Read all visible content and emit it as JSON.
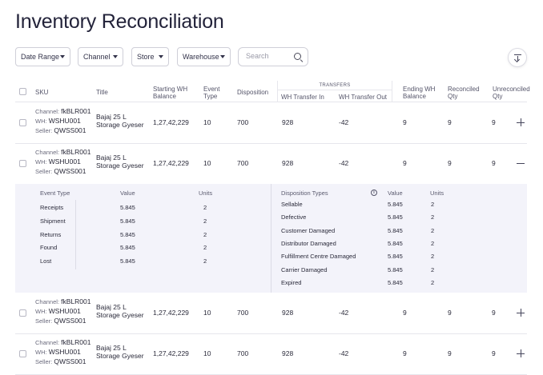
{
  "page": {
    "title": "Inventory Reconciliation"
  },
  "filters": {
    "date_range": "Date Range",
    "channel": "Channel",
    "store": "Store",
    "warehouse": "Warehouse",
    "search_placeholder": "Search"
  },
  "table": {
    "headers": {
      "sku": "SKU",
      "title": "Title",
      "starting_wh_balance_1": "Starting WH",
      "starting_wh_balance_2": "Balance",
      "event_type_1": "Event",
      "event_type_2": "Type",
      "disposition": "Disposition",
      "transfers_group": "TRANSFERS",
      "wh_transfer_in": "WH Transfer In",
      "wh_transfer_out": "WH Transfer Out",
      "ending_wh_balance_1": "Ending WH",
      "ending_wh_balance_2": "Balance",
      "reconciled_qty_1": "Reconciled",
      "reconciled_qty_2": "Qty",
      "unreconciled_qty_1": "Unreconciled",
      "unreconciled_qty_2": "Qty"
    },
    "rows": [
      {
        "channel_label": "Channel:",
        "channel": "fkBLR001",
        "wh_label": "WH:",
        "wh": "WSHU001",
        "seller_label": "Seller:",
        "seller": "QWSS001",
        "title_1": "Bajaj 25 L",
        "title_2": "Storage Gyeser",
        "starting": "1,27,42,229",
        "event_type": "10",
        "disposition": "700",
        "transfer_in": "928",
        "transfer_out": "-42",
        "ending": "9",
        "reconciled": "9",
        "unreconciled": "9",
        "expanded": false
      },
      {
        "channel_label": "Channel:",
        "channel": "fkBLR001",
        "wh_label": "WH:",
        "wh": "WSHU001",
        "seller_label": "Seller:",
        "seller": "QWSS001",
        "title_1": "Bajaj 25 L",
        "title_2": "Storage Gyeser",
        "starting": "1,27,42,229",
        "event_type": "10",
        "disposition": "700",
        "transfer_in": "928",
        "transfer_out": "-42",
        "ending": "9",
        "reconciled": "9",
        "unreconciled": "9",
        "expanded": true
      },
      {
        "channel_label": "Channel:",
        "channel": "fkBLR001",
        "wh_label": "WH:",
        "wh": "WSHU001",
        "seller_label": "Seller:",
        "seller": "QWSS001",
        "title_1": "Bajaj 25 L",
        "title_2": "Storage Gyeser",
        "starting": "1,27,42,229",
        "event_type": "10",
        "disposition": "700",
        "transfer_in": "928",
        "transfer_out": "-42",
        "ending": "9",
        "reconciled": "9",
        "unreconciled": "9",
        "expanded": false
      },
      {
        "channel_label": "Channel:",
        "channel": "fkBLR001",
        "wh_label": "WH:",
        "wh": "WSHU001",
        "seller_label": "Seller:",
        "seller": "QWSS001",
        "title_1": "Bajaj 25 L",
        "title_2": "Storage Gyeser",
        "starting": "1,27,42,229",
        "event_type": "10",
        "disposition": "700",
        "transfer_in": "928",
        "transfer_out": "-42",
        "ending": "9",
        "reconciled": "9",
        "unreconciled": "9",
        "expanded": false
      }
    ]
  },
  "detail": {
    "events": {
      "headers": {
        "event_type": "Event Type",
        "value": "Value",
        "units": "Units"
      },
      "items": [
        {
          "name": "Receipts",
          "value": "5.845",
          "units": "2"
        },
        {
          "name": "Shipment",
          "value": "5.845",
          "units": "2"
        },
        {
          "name": "Returns",
          "value": "5.845",
          "units": "2"
        },
        {
          "name": "Found",
          "value": "5.845",
          "units": "2"
        },
        {
          "name": "Lost",
          "value": "5.845",
          "units": "2"
        }
      ]
    },
    "dispositions": {
      "headers": {
        "disposition_types": "Disposition Types",
        "info": "i",
        "value": "Value",
        "units": "Units"
      },
      "items": [
        {
          "name": "Sellable",
          "value": "5.845",
          "units": "2"
        },
        {
          "name": "Defective",
          "value": "5.845",
          "units": "2"
        },
        {
          "name": "Customer Damaged",
          "value": "5.845",
          "units": "2"
        },
        {
          "name": "Distributor Damaged",
          "value": "5.845",
          "units": "2"
        },
        {
          "name": "Fulfillment Centre Damaged",
          "value": "5.845",
          "units": "2"
        },
        {
          "name": "Carrier Damaged",
          "value": "5.845",
          "units": "2"
        },
        {
          "name": "Expired",
          "value": "5.845",
          "units": "2"
        }
      ]
    }
  }
}
